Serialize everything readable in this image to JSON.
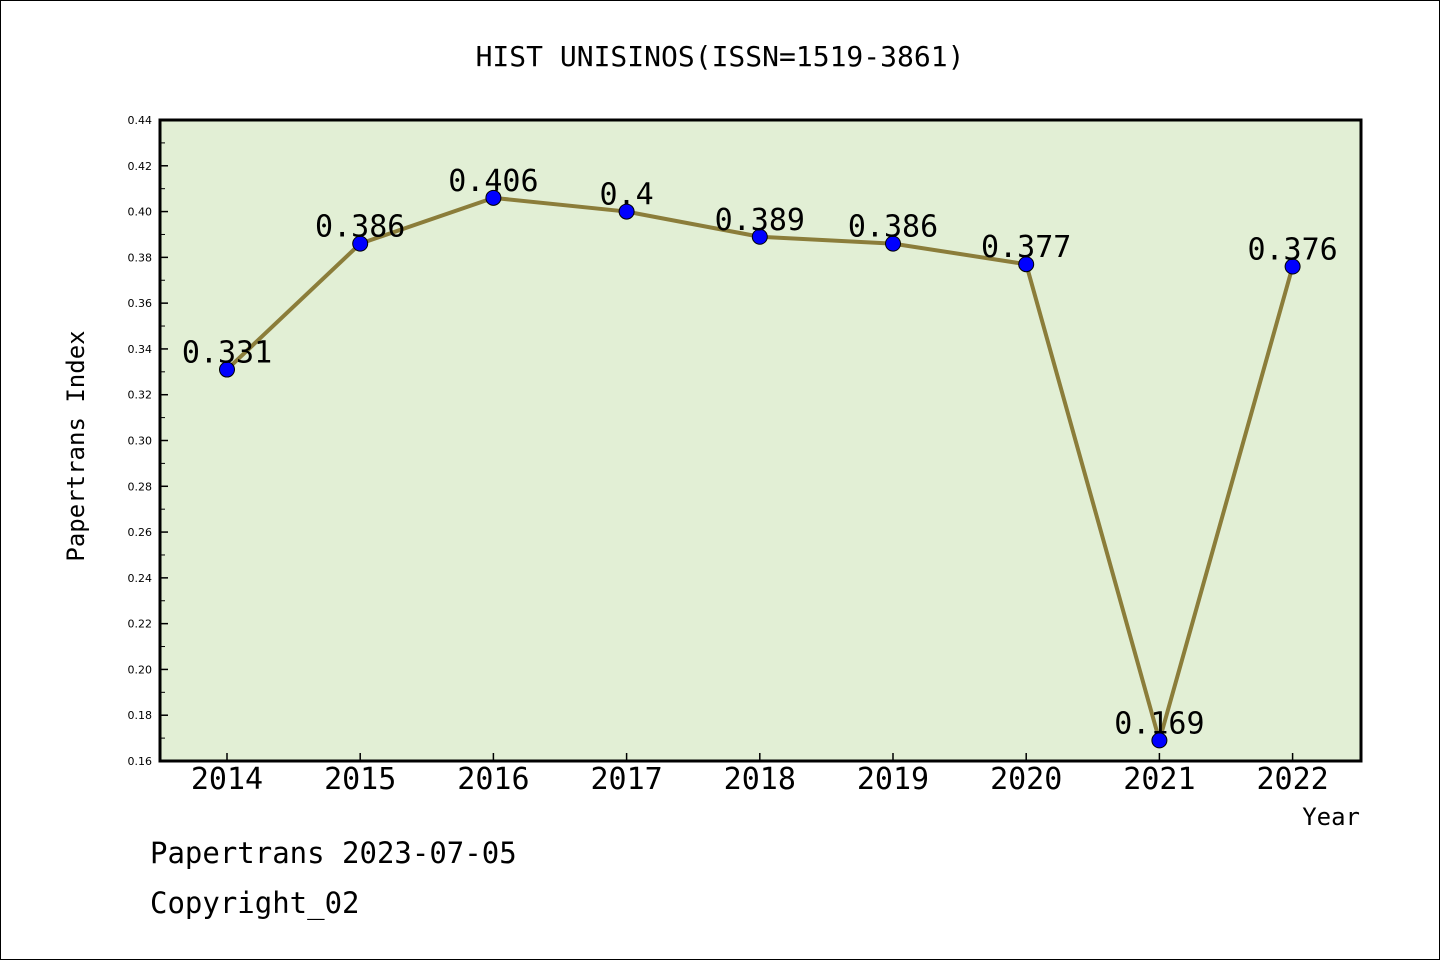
{
  "chart_data": {
    "type": "line",
    "title": "HIST UNISINOS(ISSN=1519-3861)",
    "xlabel": "Year",
    "ylabel": "Papertrans Index",
    "x": [
      "2014",
      "2015",
      "2016",
      "2017",
      "2018",
      "2019",
      "2020",
      "2021",
      "2022"
    ],
    "values": [
      0.331,
      0.386,
      0.406,
      0.4,
      0.389,
      0.386,
      0.377,
      0.169,
      0.376
    ],
    "value_labels": [
      "0.331",
      "0.386",
      "0.406",
      "0.4",
      "0.389",
      "0.386",
      "0.377",
      "0.169",
      "0.376"
    ],
    "ylim": [
      0.16,
      0.44
    ],
    "yticks": [
      "0.16",
      "0.18",
      "0.20",
      "0.22",
      "0.24",
      "0.26",
      "0.28",
      "0.30",
      "0.32",
      "0.34",
      "0.36",
      "0.38",
      "0.40",
      "0.42",
      "0.44"
    ],
    "grid": false,
    "legend": "none",
    "colors": {
      "plot_background": "#e2efd5",
      "line": "#8b7d3a",
      "marker": "#0000ff"
    }
  },
  "footer": {
    "line1": "Papertrans 2023-07-05",
    "line2": "Copyright_02"
  }
}
